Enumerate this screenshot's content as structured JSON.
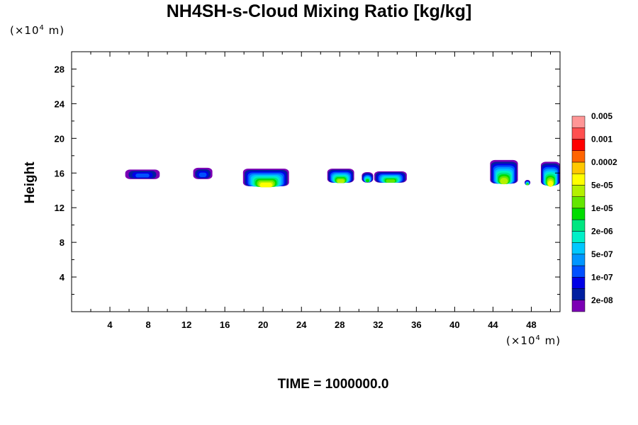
{
  "chart_data": {
    "type": "heatmap",
    "title": "NH4SH-s-Cloud Mixing Ratio [kg/kg]",
    "ylabel": "Height",
    "x_unit_label": {
      "prefix": "(×10",
      "exp": "4",
      "suffix": " m)"
    },
    "y_unit_label": {
      "prefix": "(×10",
      "exp": "4",
      "suffix": " m)"
    },
    "xlim": [
      0,
      51
    ],
    "ylim": [
      0,
      30
    ],
    "x_ticks": [
      4,
      8,
      12,
      16,
      20,
      24,
      28,
      32,
      36,
      40,
      44,
      48
    ],
    "y_ticks": [
      4,
      8,
      12,
      16,
      20,
      24,
      28
    ],
    "footer": "TIME = 1000000.0",
    "colorbar": {
      "colors": [
        "#7B00B4",
        "#001EA0",
        "#0000E6",
        "#0050FF",
        "#0096FF",
        "#00C8FF",
        "#00F0C8",
        "#00E680",
        "#00DC00",
        "#64E600",
        "#B4F000",
        "#FFFF00",
        "#FFC800",
        "#FF6400",
        "#FF0000",
        "#FF5050",
        "#FF9696"
      ],
      "labels": [
        "2e-08",
        "1e-07",
        "5e-07",
        "2e-06",
        "1e-05",
        "5e-05",
        "0.0002",
        "0.001",
        "0.005"
      ]
    },
    "clouds": [
      {
        "x": [
          5.6,
          9.2
        ],
        "y": [
          15.3,
          16.4
        ],
        "max_level": 3
      },
      {
        "x": [
          12.7,
          14.7
        ],
        "y": [
          15.3,
          16.6
        ],
        "max_level": 3
      },
      {
        "x": [
          17.9,
          22.7
        ],
        "y": [
          14.5,
          16.5
        ],
        "max_level": 11
      },
      {
        "x": [
          26.7,
          29.5
        ],
        "y": [
          14.9,
          16.5
        ],
        "max_level": 10
      },
      {
        "x": [
          30.3,
          31.5
        ],
        "y": [
          14.9,
          16.1
        ],
        "max_level": 8
      },
      {
        "x": [
          31.6,
          35.0
        ],
        "y": [
          14.9,
          16.2
        ],
        "max_level": 9
      },
      {
        "x": [
          43.7,
          46.6
        ],
        "y": [
          14.8,
          17.5
        ],
        "max_level": 10
      },
      {
        "x": [
          47.3,
          47.9
        ],
        "y": [
          14.6,
          15.2
        ],
        "max_level": 9
      },
      {
        "x": [
          49.0,
          51.0
        ],
        "y": [
          14.6,
          17.3
        ],
        "max_level": 11
      }
    ]
  }
}
